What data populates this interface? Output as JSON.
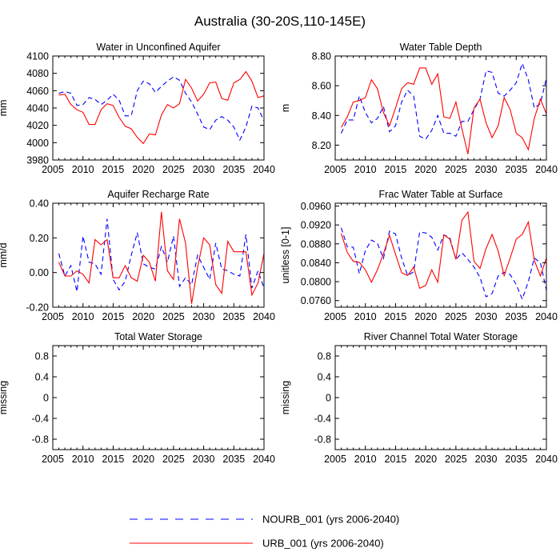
{
  "figure": {
    "title": "Australia (30-20S,110-145E)"
  },
  "colors": {
    "nourb": "#0000ff",
    "urb": "#ff0000",
    "axis": "#000000"
  },
  "legend": [
    {
      "name": "NOURB_001 (yrs 2006-2040)",
      "style": "dashed",
      "color": "#0000ff"
    },
    {
      "name": "URB_001 (yrs 2006-2040)",
      "style": "solid",
      "color": "#ff0000"
    }
  ],
  "chart_data": [
    {
      "type": "line",
      "title": "Water in Unconfined Aquifer",
      "ylabel": "mm",
      "xlim": [
        2005,
        2040
      ],
      "ylim": [
        3980,
        4100
      ],
      "xticks": [
        "2005",
        "2010",
        "2015",
        "2020",
        "2025",
        "2030",
        "2035",
        "2040"
      ],
      "yticks": [
        "3980",
        "4000",
        "4020",
        "4040",
        "4060",
        "4080",
        "4100"
      ],
      "x": [
        2006,
        2007,
        2008,
        2009,
        2010,
        2011,
        2012,
        2013,
        2014,
        2015,
        2016,
        2017,
        2018,
        2019,
        2020,
        2021,
        2022,
        2023,
        2024,
        2025,
        2026,
        2027,
        2028,
        2029,
        2030,
        2031,
        2032,
        2033,
        2034,
        2035,
        2036,
        2037,
        2038,
        2039,
        2040
      ],
      "series": [
        {
          "name": "NOURB_001 (yrs 2006-2040)",
          "values": [
            4057,
            4059,
            4057,
            4043,
            4044,
            4052,
            4050,
            4044,
            4049,
            4056,
            4049,
            4031,
            4031,
            4060,
            4071,
            4068,
            4058,
            4065,
            4071,
            4076,
            4072,
            4057,
            4047,
            4033,
            4018,
            4015,
            4026,
            4030,
            4026,
            4018,
            4003,
            4018,
            4042,
            4040,
            4025
          ]
        },
        {
          "name": "URB_001 (yrs 2006-2040)",
          "values": [
            4055,
            4056,
            4044,
            4038,
            4035,
            4021,
            4021,
            4038,
            4045,
            4043,
            4029,
            4019,
            4016,
            4006,
            3999,
            4010,
            4009,
            4032,
            4044,
            4040,
            4045,
            4073,
            4063,
            4048,
            4056,
            4069,
            4070,
            4051,
            4049,
            4069,
            4073,
            4082,
            4071,
            4052,
            4054
          ]
        }
      ]
    },
    {
      "type": "line",
      "title": "Water Table Depth",
      "ylabel": "m",
      "xlim": [
        2005,
        2040
      ],
      "ylim": [
        8.1,
        8.8
      ],
      "xticks": [
        "2005",
        "2010",
        "2015",
        "2020",
        "2025",
        "2030",
        "2035",
        "2040"
      ],
      "yticks": [
        "8.20",
        "8.40",
        "8.60",
        "8.80"
      ],
      "x": [
        2006,
        2007,
        2008,
        2009,
        2010,
        2011,
        2012,
        2013,
        2014,
        2015,
        2016,
        2017,
        2018,
        2019,
        2020,
        2021,
        2022,
        2023,
        2024,
        2025,
        2026,
        2027,
        2028,
        2029,
        2030,
        2031,
        2032,
        2033,
        2034,
        2035,
        2036,
        2037,
        2038,
        2039,
        2040
      ],
      "series": [
        {
          "name": "NOURB_001 (yrs 2006-2040)",
          "values": [
            8.28,
            8.37,
            8.37,
            8.53,
            8.42,
            8.35,
            8.38,
            8.46,
            8.29,
            8.33,
            8.49,
            8.57,
            8.53,
            8.26,
            8.24,
            8.3,
            8.4,
            8.28,
            8.28,
            8.26,
            8.36,
            8.36,
            8.44,
            8.51,
            8.7,
            8.69,
            8.55,
            8.53,
            8.57,
            8.62,
            8.75,
            8.64,
            8.45,
            8.48,
            8.65
          ]
        },
        {
          "name": "URB_001 (yrs 2006-2040)",
          "values": [
            8.32,
            8.39,
            8.49,
            8.5,
            8.52,
            8.64,
            8.58,
            8.42,
            8.33,
            8.45,
            8.58,
            8.62,
            8.61,
            8.72,
            8.72,
            8.61,
            8.68,
            8.39,
            8.38,
            8.49,
            8.31,
            8.14,
            8.45,
            8.51,
            8.35,
            8.25,
            8.33,
            8.52,
            8.44,
            8.28,
            8.25,
            8.17,
            8.38,
            8.51,
            8.41
          ]
        }
      ]
    },
    {
      "type": "line",
      "title": "Aquifer Recharge Rate",
      "ylabel": "mm/d",
      "xlim": [
        2005,
        2040
      ],
      "ylim": [
        -0.2,
        0.4
      ],
      "xticks": [
        "2005",
        "2010",
        "2015",
        "2020",
        "2025",
        "2030",
        "2035",
        "2040"
      ],
      "yticks": [
        "-0.20",
        "0.00",
        "0.20",
        "0.40"
      ],
      "x": [
        2006,
        2007,
        2008,
        2009,
        2010,
        2011,
        2012,
        2013,
        2014,
        2015,
        2016,
        2017,
        2018,
        2019,
        2020,
        2021,
        2022,
        2023,
        2024,
        2025,
        2026,
        2027,
        2028,
        2029,
        2030,
        2031,
        2032,
        2033,
        2034,
        2035,
        2036,
        2037,
        2038,
        2039,
        2040
      ],
      "series": [
        {
          "name": "NOURB_001 (yrs 2006-2040)",
          "values": [
            0.11,
            -0.02,
            0.04,
            -0.11,
            0.21,
            0.06,
            0.05,
            -0.01,
            0.31,
            -0.04,
            -0.1,
            -0.05,
            0.1,
            0.23,
            0.05,
            0.03,
            0.02,
            0.15,
            0.06,
            0.21,
            -0.08,
            -0.03,
            -0.07,
            0.1,
            0.03,
            -0.04,
            0.17,
            0.02,
            0.01,
            -0.01,
            -0.02,
            0.22,
            -0.09,
            0.01,
            -0.09
          ]
        },
        {
          "name": "URB_001 (yrs 2006-2040)",
          "values": [
            0.06,
            -0.02,
            -0.02,
            0.01,
            -0.01,
            -0.06,
            0.19,
            0.16,
            0.19,
            -0.03,
            -0.03,
            0.04,
            -0.03,
            -0.05,
            0.1,
            0.06,
            -0.05,
            0.35,
            0.01,
            -0.04,
            0.31,
            0.17,
            -0.18,
            0.03,
            0.2,
            0.16,
            -0.07,
            -0.12,
            0.18,
            0.12,
            0.12,
            0.12,
            -0.13,
            -0.06,
            0.11
          ]
        }
      ]
    },
    {
      "type": "line",
      "title": "Frac Water Table at Surface",
      "ylabel": "unitless [0-1]",
      "xlim": [
        2005,
        2040
      ],
      "ylim": [
        0.0746,
        0.0966
      ],
      "xticks": [
        "2005",
        "2010",
        "2015",
        "2020",
        "2025",
        "2030",
        "2035",
        "2040"
      ],
      "yticks": [
        "0.0760",
        "0.0800",
        "0.0840",
        "0.0880",
        "0.0920",
        "0.0960"
      ],
      "x": [
        2006,
        2007,
        2008,
        2009,
        2010,
        2011,
        2012,
        2013,
        2014,
        2015,
        2016,
        2017,
        2018,
        2019,
        2020,
        2021,
        2022,
        2023,
        2024,
        2025,
        2026,
        2027,
        2028,
        2029,
        2030,
        2031,
        2032,
        2033,
        2034,
        2035,
        2036,
        2037,
        2038,
        2039,
        2040
      ],
      "series": [
        {
          "name": "NOURB_001 (yrs 2006-2040)",
          "values": [
            0.0914,
            0.0874,
            0.0873,
            0.0817,
            0.0866,
            0.0888,
            0.0881,
            0.0849,
            0.0907,
            0.0901,
            0.085,
            0.0813,
            0.0821,
            0.0905,
            0.0903,
            0.0894,
            0.0867,
            0.0899,
            0.0893,
            0.0847,
            0.0861,
            0.0847,
            0.0831,
            0.0809,
            0.0768,
            0.0775,
            0.0812,
            0.082,
            0.0815,
            0.0794,
            0.0763,
            0.08,
            0.085,
            0.084,
            0.0782
          ]
        },
        {
          "name": "URB_001 (yrs 2006-2040)",
          "values": [
            0.0902,
            0.0862,
            0.0843,
            0.0841,
            0.0825,
            0.0799,
            0.0825,
            0.0859,
            0.0898,
            0.0858,
            0.0819,
            0.0813,
            0.0831,
            0.0786,
            0.0792,
            0.0825,
            0.0799,
            0.0899,
            0.089,
            0.0847,
            0.093,
            0.0947,
            0.0843,
            0.0828,
            0.087,
            0.09,
            0.0865,
            0.0813,
            0.085,
            0.089,
            0.09,
            0.0926,
            0.0845,
            0.0812,
            0.085
          ]
        }
      ]
    },
    {
      "type": "line",
      "title": "Total Water Storage",
      "ylabel": "missing",
      "xlim": [
        2005,
        2040
      ],
      "ylim": [
        -1,
        1
      ],
      "xticks": [
        "2005",
        "2010",
        "2015",
        "2020",
        "2025",
        "2030",
        "2035",
        "2040"
      ],
      "yticks": [
        "-0.8",
        "-0.4",
        "0",
        "0.4",
        "0.8"
      ],
      "x": [],
      "series": []
    },
    {
      "type": "line",
      "title": "River Channel Total Water Storage",
      "ylabel": "missing",
      "xlim": [
        2005,
        2040
      ],
      "ylim": [
        -1,
        1
      ],
      "xticks": [
        "2005",
        "2010",
        "2015",
        "2020",
        "2025",
        "2030",
        "2035",
        "2040"
      ],
      "yticks": [
        "-0.8",
        "-0.4",
        "0",
        "0.4",
        "0.8"
      ],
      "x": [],
      "series": []
    }
  ]
}
